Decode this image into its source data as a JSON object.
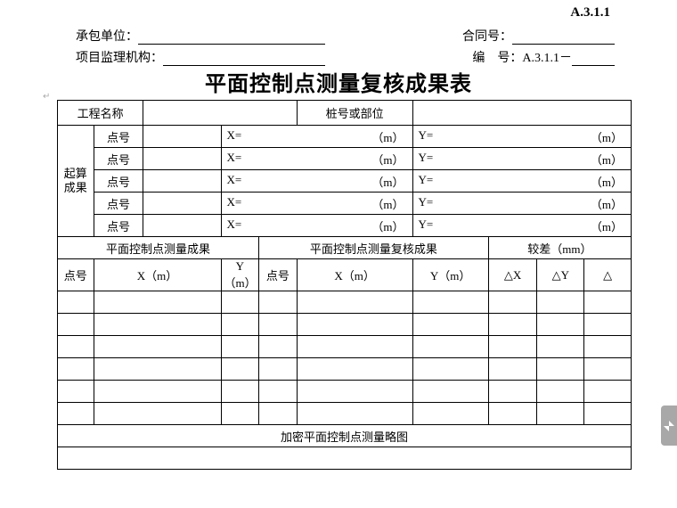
{
  "doc_code": "A.3.1.1",
  "header": {
    "left1_label": "承包单位：",
    "left2_label": "项目监理机构：",
    "right1_label": "合同号：",
    "right2_label": "编　号：",
    "right2_value": "A.3.1.1－"
  },
  "title": "平面控制点测量复核成果表",
  "anchor": "↵",
  "row1": {
    "c1": "工程名称",
    "c2": "桩号或部位"
  },
  "calc": {
    "label": "起算\n成果",
    "point": "点号",
    "X": "X=",
    "Y": "Y=",
    "unit": "（m）"
  },
  "section_headers": {
    "a": "平面控制点测量成果",
    "b": "平面控制点测量复核成果",
    "c": "较差（mm）"
  },
  "cols": {
    "pt": "点号",
    "xm": "X（m）",
    "ym": "Y（m）",
    "dx": "△X",
    "dy": "△Y",
    "d": "△"
  },
  "footer": "加密平面控制点测量略图"
}
